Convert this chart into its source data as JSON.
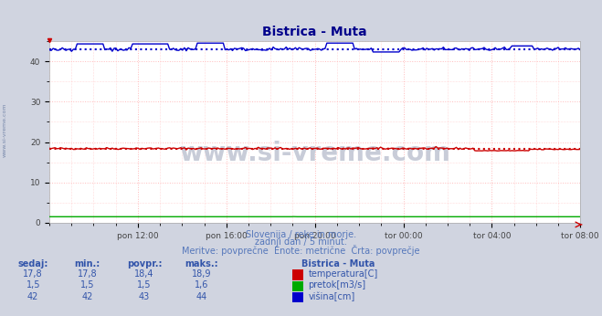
{
  "title": "Bistrica - Muta",
  "title_color": "#00008b",
  "bg_color": "#d0d4e0",
  "plot_bg_color": "#ffffff",
  "grid_color": "#ffbbbb",
  "xlabel_ticks": [
    "pon 12:00",
    "pon 16:00",
    "pon 20:00",
    "tor 00:00",
    "tor 04:00",
    "tor 08:00"
  ],
  "ylabel_ticks": [
    0,
    10,
    20,
    30,
    40
  ],
  "ylim": [
    0,
    45
  ],
  "xlim": [
    0,
    287
  ],
  "temp_color": "#cc0000",
  "pretok_color": "#00aa00",
  "visina_color": "#0000cc",
  "temp_avg": 18.4,
  "pretok_avg": 1.5,
  "visina_avg": 43,
  "temp_min": 17.8,
  "temp_max": 18.9,
  "pretok_min": 1.5,
  "pretok_max": 1.6,
  "visina_min": 42,
  "visina_max": 44,
  "temp_sedaj": "17,8",
  "pretok_sedaj": "1,5",
  "visina_sedaj": "42",
  "temp_min_s": "17,8",
  "pretok_min_s": "1,5",
  "visina_min_s": "42",
  "temp_avg_s": "18,4",
  "pretok_avg_s": "1,5",
  "visina_avg_s": "43",
  "temp_max_s": "18,9",
  "pretok_max_s": "1,6",
  "visina_max_s": "44",
  "watermark_text": "www.si-vreme.com",
  "watermark_color": "#c8ccd8",
  "subtitle1": "Slovenija / reke in morje.",
  "subtitle2": "zadnji dan / 5 minut.",
  "subtitle3": "Meritve: povprečne  Enote: metrične  Črta: povprečje",
  "subtitle_color": "#5577bb",
  "legend_title": "Bistrica - Muta",
  "legend_labels": [
    "temperatura[C]",
    "pretok[m3/s]",
    "višina[cm]"
  ],
  "table_headers": [
    "sedaj:",
    "min.:",
    "povpr.:",
    "maks.:"
  ],
  "table_color": "#3355aa",
  "n_points": 288
}
